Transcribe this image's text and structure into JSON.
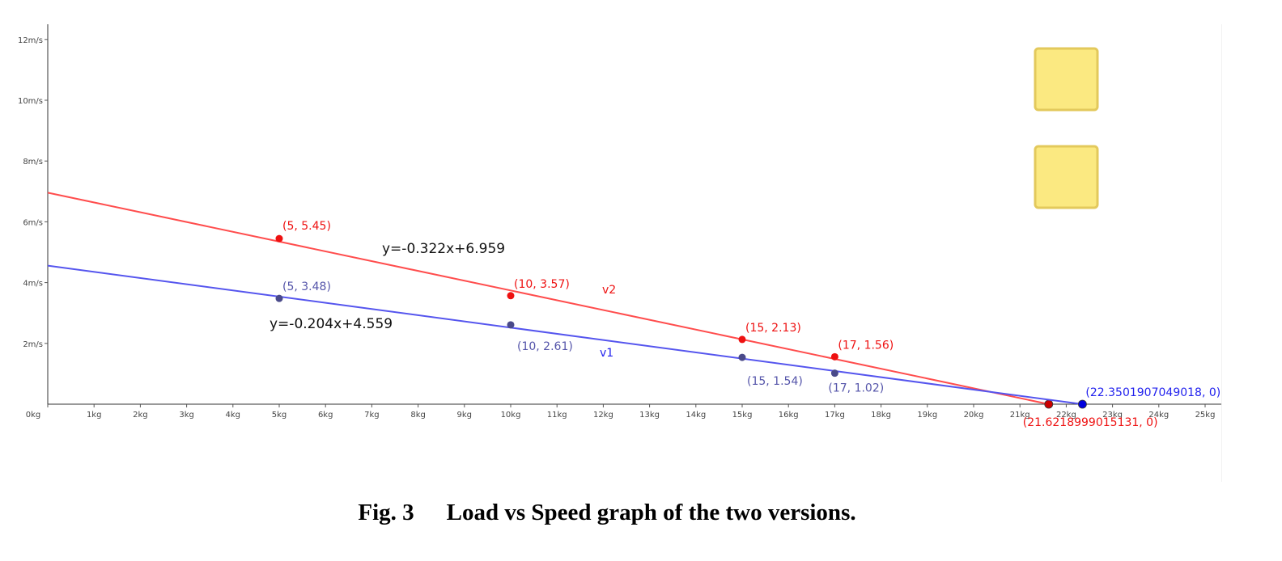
{
  "chart_data": {
    "type": "line",
    "title": "",
    "xlabel": "",
    "ylabel": "",
    "xlim": [
      0,
      25
    ],
    "ylim": [
      0,
      12.5
    ],
    "x_ticks": [
      {
        "value": 0,
        "label": "0kg"
      },
      {
        "value": 1,
        "label": "1kg"
      },
      {
        "value": 2,
        "label": "2kg"
      },
      {
        "value": 3,
        "label": "3kg"
      },
      {
        "value": 4,
        "label": "4kg"
      },
      {
        "value": 5,
        "label": "5kg"
      },
      {
        "value": 6,
        "label": "6kg"
      },
      {
        "value": 7,
        "label": "7kg"
      },
      {
        "value": 8,
        "label": "8kg"
      },
      {
        "value": 9,
        "label": "9kg"
      },
      {
        "value": 10,
        "label": "10kg"
      },
      {
        "value": 11,
        "label": "11kg"
      },
      {
        "value": 12,
        "label": "12kg"
      },
      {
        "value": 13,
        "label": "13kg"
      },
      {
        "value": 14,
        "label": "14kg"
      },
      {
        "value": 15,
        "label": "15kg"
      },
      {
        "value": 16,
        "label": "16kg"
      },
      {
        "value": 17,
        "label": "17kg"
      },
      {
        "value": 18,
        "label": "18kg"
      },
      {
        "value": 19,
        "label": "19kg"
      },
      {
        "value": 20,
        "label": "20kg"
      },
      {
        "value": 21,
        "label": "21kg"
      },
      {
        "value": 22,
        "label": "22kg"
      },
      {
        "value": 23,
        "label": "23kg"
      },
      {
        "value": 24,
        "label": "24kg"
      },
      {
        "value": 25,
        "label": "25kg"
      }
    ],
    "y_ticks": [
      {
        "value": 2,
        "label": "2m/s"
      },
      {
        "value": 4,
        "label": "4m/s"
      },
      {
        "value": 6,
        "label": "6m/s"
      },
      {
        "value": 8,
        "label": "8m/s"
      },
      {
        "value": 10,
        "label": "10m/s"
      },
      {
        "value": 12,
        "label": "12m/s"
      }
    ],
    "grid": false,
    "series": [
      {
        "name": "v2",
        "color": "#ff4d4d",
        "point_color": "#ee1111",
        "line": {
          "slope": -0.322,
          "intercept": 6.959,
          "x_range": [
            0,
            21.6218999015131
          ]
        },
        "equation": "y=-0.322x+6.959",
        "points": [
          {
            "x": 5,
            "y": 5.45,
            "label": "(5, 5.45)"
          },
          {
            "x": 10,
            "y": 3.57,
            "label": "(10, 3.57)"
          },
          {
            "x": 15,
            "y": 2.13,
            "label": "(15, 2.13)"
          },
          {
            "x": 17,
            "y": 1.56,
            "label": "(17, 1.56)"
          },
          {
            "x": 21.6218999015131,
            "y": 0,
            "label": "(21.6218999015131, 0)"
          }
        ]
      },
      {
        "name": "v1",
        "color": "#5555ee",
        "point_color": "#4a4a8a",
        "line": {
          "slope": -0.204,
          "intercept": 4.559,
          "x_range": [
            0,
            22.3501907049018
          ]
        },
        "equation": "y=-0.204x+4.559",
        "points": [
          {
            "x": 5,
            "y": 3.48,
            "label": "(5, 3.48)"
          },
          {
            "x": 10,
            "y": 2.61,
            "label": "(10, 2.61)"
          },
          {
            "x": 15,
            "y": 1.54,
            "label": "(15, 1.54)"
          },
          {
            "x": 17,
            "y": 1.02,
            "label": "(17, 1.02)"
          },
          {
            "x": 22.3501907049018,
            "y": 0,
            "label": "(22.3501907049018, 0)"
          }
        ]
      }
    ],
    "legend_boxes": {
      "color": "#fbe981",
      "border": "#e3c95c",
      "count": 2,
      "placement": "top-right"
    }
  },
  "caption": {
    "figure_number": "Fig. 3",
    "text": "Load vs Speed graph of the two versions."
  }
}
